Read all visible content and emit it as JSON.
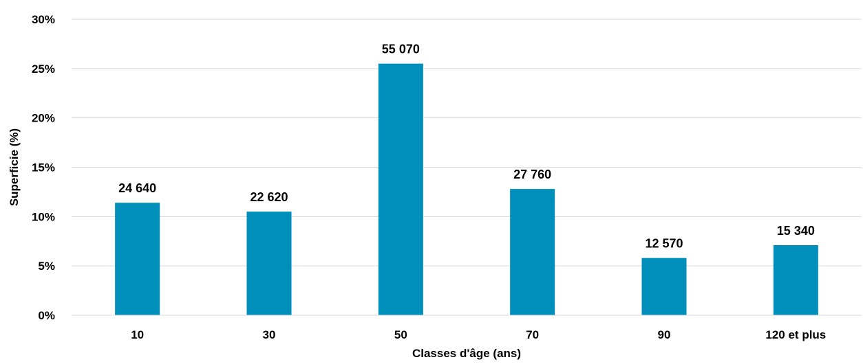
{
  "chart_data": {
    "type": "bar",
    "categories": [
      "10",
      "30",
      "50",
      "70",
      "90",
      "120 et plus"
    ],
    "values": [
      11.4,
      10.5,
      25.5,
      12.8,
      5.8,
      7.1
    ],
    "data_labels": [
      "24 640",
      "22 620",
      "55 070",
      "27 760",
      "12 570",
      "15 340"
    ],
    "xlabel": "Classes d'âge (ans)",
    "ylabel": "Superficie (%)",
    "ylim": [
      0,
      30
    ],
    "yticks": [
      0,
      5,
      10,
      15,
      20,
      25,
      30
    ],
    "ytick_labels": [
      "0%",
      "5%",
      "10%",
      "15%",
      "20%",
      "25%",
      "30%"
    ],
    "grid": true,
    "legend": "none",
    "bar_color": "#008fba",
    "grid_color": "#d9d9d9"
  }
}
